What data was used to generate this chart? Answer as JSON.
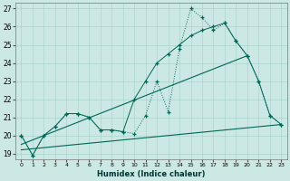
{
  "xlabel": "Humidex (Indice chaleur)",
  "x_values": [
    0,
    1,
    2,
    3,
    4,
    5,
    6,
    7,
    8,
    9,
    10,
    11,
    12,
    13,
    14,
    15,
    16,
    17,
    18,
    19,
    20,
    21,
    22,
    23
  ],
  "y_main": [
    20.0,
    18.9,
    20.0,
    20.5,
    21.2,
    21.2,
    21.0,
    20.3,
    20.3,
    20.2,
    20.1,
    21.1,
    23.0,
    21.3,
    24.8,
    27.0,
    26.5,
    25.8,
    26.2,
    25.2,
    24.4,
    23.0,
    21.1,
    20.6
  ],
  "y_upper": [
    20.0,
    18.9,
    20.0,
    20.5,
    21.2,
    21.2,
    21.0,
    20.3,
    20.3,
    20.2,
    22.0,
    23.0,
    24.0,
    24.5,
    25.0,
    25.5,
    25.8,
    26.0,
    26.2,
    25.2,
    24.4,
    23.0,
    21.1,
    20.6
  ],
  "trend1_x": [
    0,
    20
  ],
  "trend1_y": [
    19.5,
    24.4
  ],
  "trend2_x": [
    0,
    23
  ],
  "trend2_y": [
    19.2,
    20.6
  ],
  "bg_color": "#cce8e4",
  "grid_color": "#aad4cc",
  "line_color": "#006655",
  "ylim": [
    18.7,
    27.3
  ],
  "yticks": [
    19,
    20,
    21,
    22,
    23,
    24,
    25,
    26,
    27
  ],
  "xticks": [
    0,
    1,
    2,
    3,
    4,
    5,
    6,
    7,
    8,
    9,
    10,
    11,
    12,
    13,
    14,
    15,
    16,
    17,
    18,
    19,
    20,
    21,
    22,
    23
  ]
}
